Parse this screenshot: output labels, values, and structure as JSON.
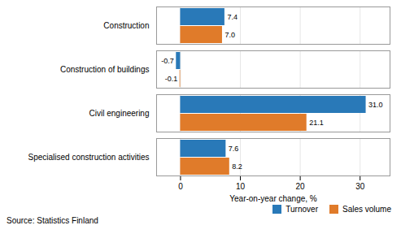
{
  "chart_data": {
    "type": "bar",
    "orientation": "horizontal",
    "categories": [
      "Construction",
      "Construction of buildings",
      "Civil engineering",
      "Specialised construction activities"
    ],
    "series": [
      {
        "name": "Turnover",
        "color": "#2979b8",
        "values": [
          7.4,
          -0.7,
          31.0,
          7.6
        ],
        "value_labels": [
          "7.4",
          "-0.7",
          "31.0",
          "7.6"
        ]
      },
      {
        "name": "Sales volume",
        "color": "#e07b2a",
        "values": [
          7.0,
          -0.1,
          21.1,
          8.2
        ],
        "value_labels": [
          "7.0",
          "-0.1",
          "21.1",
          "8.2"
        ]
      }
    ],
    "xlabel": "Year-on-year change, %",
    "xlim": [
      -4,
      35
    ],
    "xticks": [
      0,
      10,
      20,
      30
    ],
    "grid": true,
    "legend": "lower right",
    "data_labels": true,
    "source": "Source: Statistics Finland"
  }
}
